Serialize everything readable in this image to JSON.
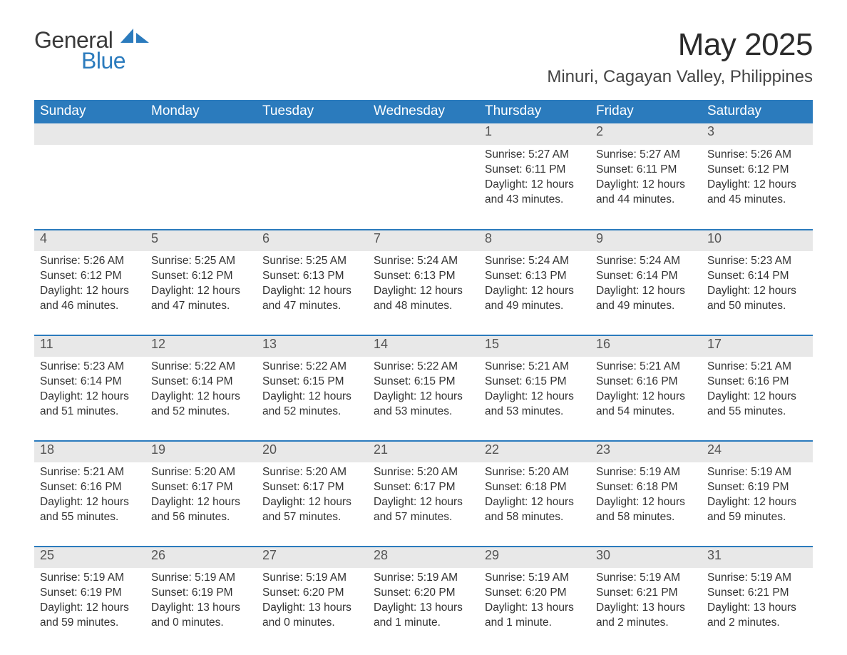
{
  "logo": {
    "text1": "General",
    "text2": "Blue",
    "sail_color": "#2b7bbd"
  },
  "title": "May 2025",
  "location": "Minuri, Cagayan Valley, Philippines",
  "colors": {
    "header_bg": "#2b7bbd",
    "header_fg": "#ffffff",
    "strip_bg": "#e8e8e8",
    "rule": "#2b7bbd",
    "body_bg": "#ffffff",
    "text": "#333333"
  },
  "typography": {
    "title_fontsize": 44,
    "location_fontsize": 24,
    "dow_fontsize": 19,
    "daynum_fontsize": 18,
    "body_fontsize": 15.5
  },
  "dow": [
    "Sunday",
    "Monday",
    "Tuesday",
    "Wednesday",
    "Thursday",
    "Friday",
    "Saturday"
  ],
  "weeks": [
    [
      null,
      null,
      null,
      null,
      {
        "n": "1",
        "sr": "5:27 AM",
        "ss": "6:11 PM",
        "dl": "12 hours and 43 minutes."
      },
      {
        "n": "2",
        "sr": "5:27 AM",
        "ss": "6:11 PM",
        "dl": "12 hours and 44 minutes."
      },
      {
        "n": "3",
        "sr": "5:26 AM",
        "ss": "6:12 PM",
        "dl": "12 hours and 45 minutes."
      }
    ],
    [
      {
        "n": "4",
        "sr": "5:26 AM",
        "ss": "6:12 PM",
        "dl": "12 hours and 46 minutes."
      },
      {
        "n": "5",
        "sr": "5:25 AM",
        "ss": "6:12 PM",
        "dl": "12 hours and 47 minutes."
      },
      {
        "n": "6",
        "sr": "5:25 AM",
        "ss": "6:13 PM",
        "dl": "12 hours and 47 minutes."
      },
      {
        "n": "7",
        "sr": "5:24 AM",
        "ss": "6:13 PM",
        "dl": "12 hours and 48 minutes."
      },
      {
        "n": "8",
        "sr": "5:24 AM",
        "ss": "6:13 PM",
        "dl": "12 hours and 49 minutes."
      },
      {
        "n": "9",
        "sr": "5:24 AM",
        "ss": "6:14 PM",
        "dl": "12 hours and 49 minutes."
      },
      {
        "n": "10",
        "sr": "5:23 AM",
        "ss": "6:14 PM",
        "dl": "12 hours and 50 minutes."
      }
    ],
    [
      {
        "n": "11",
        "sr": "5:23 AM",
        "ss": "6:14 PM",
        "dl": "12 hours and 51 minutes."
      },
      {
        "n": "12",
        "sr": "5:22 AM",
        "ss": "6:14 PM",
        "dl": "12 hours and 52 minutes."
      },
      {
        "n": "13",
        "sr": "5:22 AM",
        "ss": "6:15 PM",
        "dl": "12 hours and 52 minutes."
      },
      {
        "n": "14",
        "sr": "5:22 AM",
        "ss": "6:15 PM",
        "dl": "12 hours and 53 minutes."
      },
      {
        "n": "15",
        "sr": "5:21 AM",
        "ss": "6:15 PM",
        "dl": "12 hours and 53 minutes."
      },
      {
        "n": "16",
        "sr": "5:21 AM",
        "ss": "6:16 PM",
        "dl": "12 hours and 54 minutes."
      },
      {
        "n": "17",
        "sr": "5:21 AM",
        "ss": "6:16 PM",
        "dl": "12 hours and 55 minutes."
      }
    ],
    [
      {
        "n": "18",
        "sr": "5:21 AM",
        "ss": "6:16 PM",
        "dl": "12 hours and 55 minutes."
      },
      {
        "n": "19",
        "sr": "5:20 AM",
        "ss": "6:17 PM",
        "dl": "12 hours and 56 minutes."
      },
      {
        "n": "20",
        "sr": "5:20 AM",
        "ss": "6:17 PM",
        "dl": "12 hours and 57 minutes."
      },
      {
        "n": "21",
        "sr": "5:20 AM",
        "ss": "6:17 PM",
        "dl": "12 hours and 57 minutes."
      },
      {
        "n": "22",
        "sr": "5:20 AM",
        "ss": "6:18 PM",
        "dl": "12 hours and 58 minutes."
      },
      {
        "n": "23",
        "sr": "5:19 AM",
        "ss": "6:18 PM",
        "dl": "12 hours and 58 minutes."
      },
      {
        "n": "24",
        "sr": "5:19 AM",
        "ss": "6:19 PM",
        "dl": "12 hours and 59 minutes."
      }
    ],
    [
      {
        "n": "25",
        "sr": "5:19 AM",
        "ss": "6:19 PM",
        "dl": "12 hours and 59 minutes."
      },
      {
        "n": "26",
        "sr": "5:19 AM",
        "ss": "6:19 PM",
        "dl": "13 hours and 0 minutes."
      },
      {
        "n": "27",
        "sr": "5:19 AM",
        "ss": "6:20 PM",
        "dl": "13 hours and 0 minutes."
      },
      {
        "n": "28",
        "sr": "5:19 AM",
        "ss": "6:20 PM",
        "dl": "13 hours and 1 minute."
      },
      {
        "n": "29",
        "sr": "5:19 AM",
        "ss": "6:20 PM",
        "dl": "13 hours and 1 minute."
      },
      {
        "n": "30",
        "sr": "5:19 AM",
        "ss": "6:21 PM",
        "dl": "13 hours and 2 minutes."
      },
      {
        "n": "31",
        "sr": "5:19 AM",
        "ss": "6:21 PM",
        "dl": "13 hours and 2 minutes."
      }
    ]
  ],
  "labels": {
    "sunrise": "Sunrise:",
    "sunset": "Sunset:",
    "daylight": "Daylight:"
  }
}
